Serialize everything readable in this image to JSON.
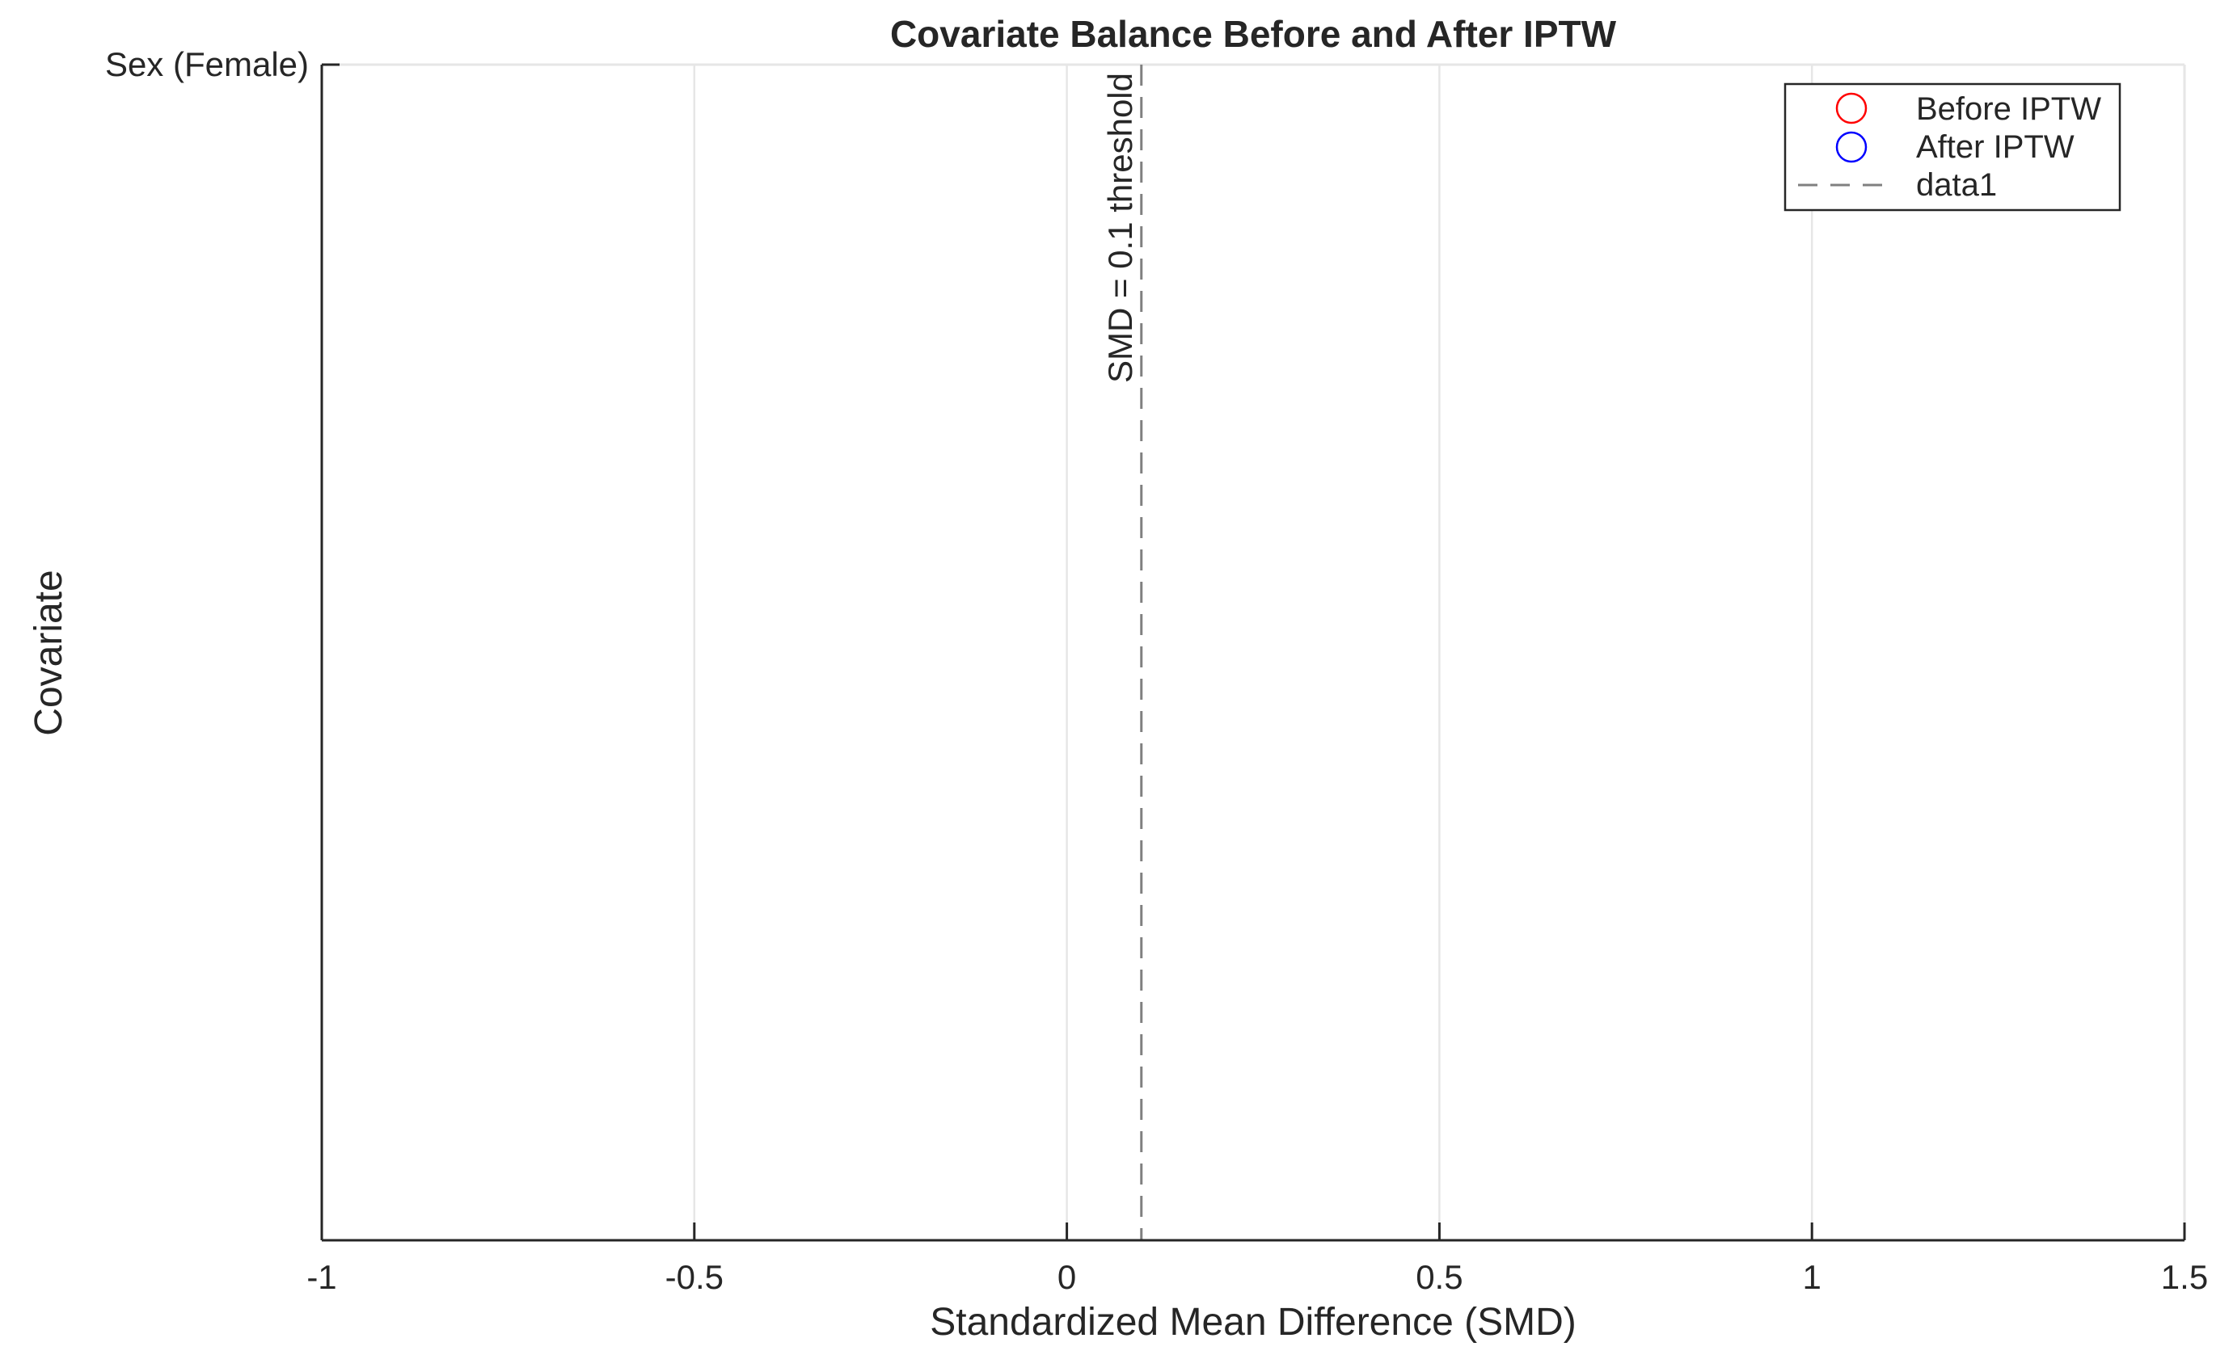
{
  "chart_data": {
    "type": "scatter",
    "title": "Covariate Balance Before and After IPTW",
    "xlabel": "Standardized Mean Difference (SMD)",
    "ylabel": "Covariate",
    "xlim": [
      -1,
      1.5
    ],
    "xticks": [
      -1,
      -0.5,
      0,
      0.5,
      1,
      1.5
    ],
    "xtick_labels": [
      "-1",
      "-0.5",
      "0",
      "0.5",
      "1",
      "1.5"
    ],
    "ytick_labels": [
      "Sex (Female)"
    ],
    "grid": "x",
    "legend_position": "top-right",
    "series": [
      {
        "name": "Before IPTW",
        "marker": "circle",
        "color": "#ff0000",
        "x": [],
        "y": []
      },
      {
        "name": "After IPTW",
        "marker": "circle",
        "color": "#0000ff",
        "x": [],
        "y": []
      },
      {
        "name": "data1",
        "style": "dashed",
        "color": "#808080"
      }
    ],
    "threshold": {
      "x": 0.1,
      "label": "SMD = 0.1 threshold"
    }
  }
}
